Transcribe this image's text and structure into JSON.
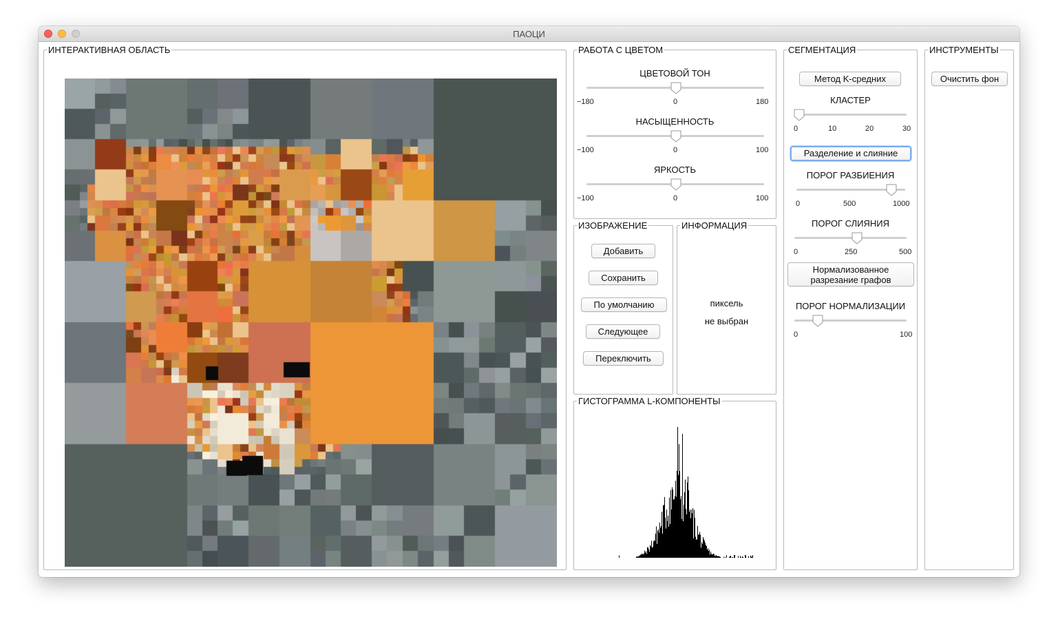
{
  "window": {
    "title": "ПАОЦИ"
  },
  "interactive": {
    "legend": "ИНТЕРАКТИВНАЯ ОБЛАСТЬ"
  },
  "color": {
    "legend": "РАБОТА С ЦВЕТОМ",
    "hue": {
      "label": "ЦВЕТОВОЙ ТОН",
      "min": "−180",
      "mid": "0",
      "max": "180",
      "value": 0
    },
    "saturation": {
      "label": "НАСЫЩЕННОСТЬ",
      "min": "−100",
      "mid": "0",
      "max": "100",
      "value": 0
    },
    "brightness": {
      "label": "ЯРКОСТЬ",
      "min": "−100",
      "mid": "0",
      "max": "100",
      "value": 0
    }
  },
  "image": {
    "legend": "ИЗОБРАЖЕНИЕ",
    "add": "Добавить",
    "save": "Сохранить",
    "default": "По умолчанию",
    "next": "Следующее",
    "toggle": "Переключить"
  },
  "info": {
    "legend": "ИНФОРМАЦИЯ",
    "line1": "пиксель",
    "line2": "не выбран"
  },
  "histogram": {
    "legend": "ГИСТОГРАММА L-КОМПОНЕНТЫ"
  },
  "segmentation": {
    "legend": "СЕГМЕНТАЦИЯ",
    "kmeans": "Метод K-средних",
    "cluster": {
      "label": "КЛАСТЕР",
      "t0": "0",
      "t1": "10",
      "t2": "20",
      "t3": "30",
      "value": 0
    },
    "split_merge": "Разделение и слияние",
    "split_threshold": {
      "label": "ПОРОГ РАЗБИЕНИЯ",
      "t0": "0",
      "t1": "500",
      "t2": "1000",
      "value": 900
    },
    "merge_threshold": {
      "label": "ПОРОГ СЛИЯНИЯ",
      "t0": "0",
      "t1": "250",
      "t2": "500",
      "value": 250
    },
    "normalized_cut_line1": "Нормализованное",
    "normalized_cut_line2": "разрезание графов",
    "norm_threshold": {
      "label": "ПОРОГ НОРМАЛИЗАЦИИ",
      "t0": "0",
      "t1": "100",
      "value": 20
    }
  },
  "tools": {
    "legend": "ИНСТРУМЕНТЫ",
    "clear_bg": "Очистить фон"
  }
}
